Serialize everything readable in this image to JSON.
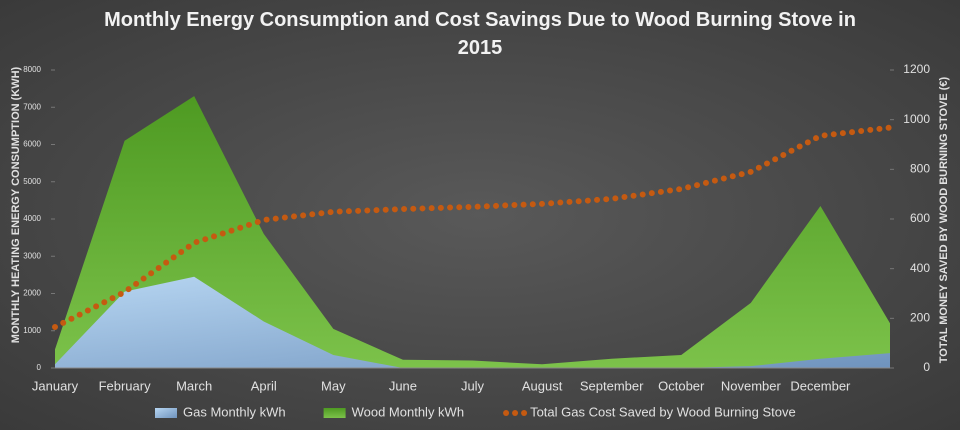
{
  "chart_data": {
    "type": "area",
    "title": "Monthly Energy Consumption and Cost Savings Due to Wood Burning Stove in 2015",
    "y_label": "MONTHLY HEATING ENERGY CONSUMPTION (KWH)",
    "y2_label": "TOTAL MONEY SAVED BY WOOD BURNING STOVE (€)",
    "categories": [
      "January",
      "February",
      "March",
      "April",
      "May",
      "June",
      "July",
      "August",
      "September",
      "October",
      "November",
      "December",
      null
    ],
    "series": [
      {
        "name": "Wood Monthly kWh",
        "color": "#5aa02c",
        "values": [
          500,
          6100,
          7300,
          3600,
          1050,
          220,
          200,
          100,
          250,
          350,
          1750,
          4350,
          1200
        ]
      },
      {
        "name": "Gas Monthly kWh",
        "color": "#9dc3e6",
        "values": [
          100,
          2050,
          2450,
          1250,
          350,
          0,
          0,
          0,
          0,
          0,
          50,
          250,
          400
        ]
      },
      {
        "name": "Total Gas Cost Saved by Wood Burning Stove",
        "color": "#c55a11",
        "axis": "y2",
        "type": "dotted-line",
        "values": [
          165,
          306,
          504,
          596,
          629,
          640,
          649,
          661,
          681,
          721,
          790,
          935,
          968
        ]
      }
    ],
    "legend_order": [
      1,
      0,
      2
    ],
    "ylim": [
      0,
      8000
    ],
    "yticks": [
      0,
      1000,
      2000,
      3000,
      4000,
      5000,
      6000,
      7000,
      8000
    ],
    "y2lim": [
      0,
      1200
    ],
    "y2ticks": [
      0,
      200,
      400,
      600,
      800,
      1000,
      1200
    ],
    "legend": "bottom"
  }
}
